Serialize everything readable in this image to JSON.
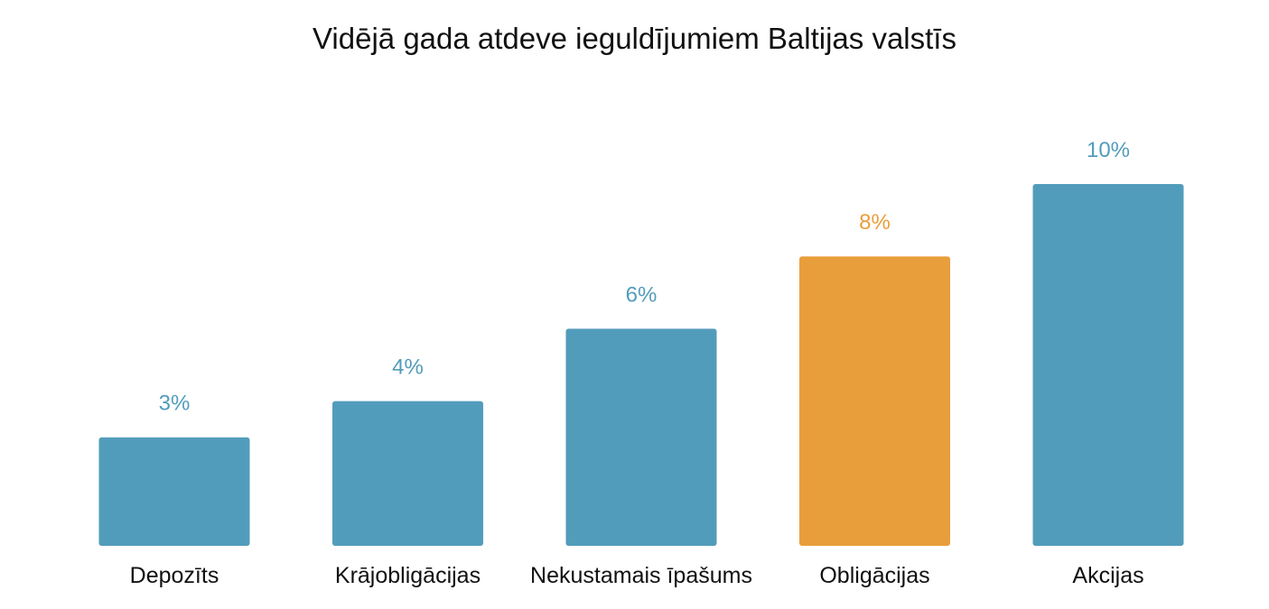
{
  "chart_data": {
    "type": "bar",
    "title": "Vidējā gada atdeve ieguldījumiem Baltijas valstīs",
    "categories": [
      "Depozīts",
      "Krājobligācijas",
      "Nekustamais īpašums",
      "Obligācijas",
      "Akcijas"
    ],
    "values": [
      3,
      4,
      6,
      8,
      10
    ],
    "value_labels": [
      "3%",
      "4%",
      "6%",
      "8%",
      "10%"
    ],
    "unit": "%",
    "xlabel": "",
    "ylabel": "",
    "ylim": [
      0,
      10
    ],
    "grid": false,
    "legend": "none",
    "colors": {
      "default": "#529cbb",
      "highlight": "#e99e3c"
    },
    "highlight_index": 3
  }
}
